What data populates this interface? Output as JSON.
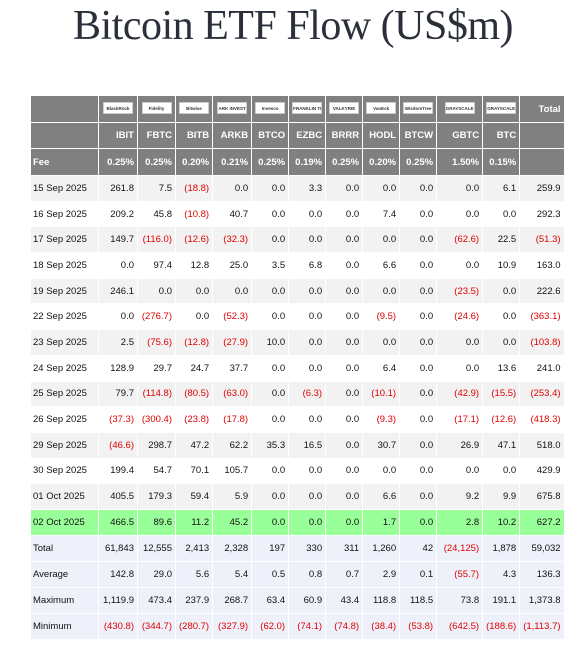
{
  "title": "Bitcoin ETF Flow (US$m)",
  "table": {
    "logos": [
      "BlackRock",
      "Fidelity",
      "Bitwise",
      "ARK INVEST",
      "Invesco",
      "FRANKLIN TEMPLETON",
      "VALKYRIE",
      "VanEck",
      "WisdomTree",
      "GRAYSCALE",
      "GRAYSCALE"
    ],
    "total_header": "Total",
    "tickers": [
      "IBIT",
      "FBTC",
      "BITB",
      "ARKB",
      "BTCO",
      "EZBC",
      "BRRR",
      "HODL",
      "BTCW",
      "GBTC",
      "BTC"
    ],
    "fee": {
      "label": "Fee",
      "values": [
        "0.25%",
        "0.25%",
        "0.20%",
        "0.21%",
        "0.25%",
        "0.19%",
        "0.25%",
        "0.20%",
        "0.25%",
        "1.50%",
        "0.15%"
      ]
    },
    "rows": [
      [
        "15 Sep 2025",
        "261.8",
        "7.5",
        "(18.8)",
        "0.0",
        "0.0",
        "3.3",
        "0.0",
        "0.0",
        "0.0",
        "0.0",
        "6.1",
        "259.9"
      ],
      [
        "16 Sep 2025",
        "209.2",
        "45.8",
        "(10.8)",
        "40.7",
        "0.0",
        "0.0",
        "0.0",
        "7.4",
        "0.0",
        "0.0",
        "0.0",
        "292.3"
      ],
      [
        "17 Sep 2025",
        "149.7",
        "(116.0)",
        "(12.6)",
        "(32.3)",
        "0.0",
        "0.0",
        "0.0",
        "0.0",
        "0.0",
        "(62.6)",
        "22.5",
        "(51.3)"
      ],
      [
        "18 Sep 2025",
        "0.0",
        "97.4",
        "12.8",
        "25.0",
        "3.5",
        "6.8",
        "0.0",
        "6.6",
        "0.0",
        "0.0",
        "10.9",
        "163.0"
      ],
      [
        "19 Sep 2025",
        "246.1",
        "0.0",
        "0.0",
        "0.0",
        "0.0",
        "0.0",
        "0.0",
        "0.0",
        "0.0",
        "(23.5)",
        "0.0",
        "222.6"
      ],
      [
        "22 Sep 2025",
        "0.0",
        "(276.7)",
        "0.0",
        "(52.3)",
        "0.0",
        "0.0",
        "0.0",
        "(9.5)",
        "0.0",
        "(24.6)",
        "0.0",
        "(363.1)"
      ],
      [
        "23 Sep 2025",
        "2.5",
        "(75.6)",
        "(12.8)",
        "(27.9)",
        "10.0",
        "0.0",
        "0.0",
        "0.0",
        "0.0",
        "0.0",
        "0.0",
        "(103.8)"
      ],
      [
        "24 Sep 2025",
        "128.9",
        "29.7",
        "24.7",
        "37.7",
        "0.0",
        "0.0",
        "0.0",
        "6.4",
        "0.0",
        "0.0",
        "13.6",
        "241.0"
      ],
      [
        "25 Sep 2025",
        "79.7",
        "(114.8)",
        "(80.5)",
        "(63.0)",
        "0.0",
        "(6.3)",
        "0.0",
        "(10.1)",
        "0.0",
        "(42.9)",
        "(15.5)",
        "(253.4)"
      ],
      [
        "26 Sep 2025",
        "(37.3)",
        "(300.4)",
        "(23.8)",
        "(17.8)",
        "0.0",
        "0.0",
        "0.0",
        "(9.3)",
        "0.0",
        "(17.1)",
        "(12.6)",
        "(418.3)"
      ],
      [
        "29 Sep 2025",
        "(46.6)",
        "298.7",
        "47.2",
        "62.2",
        "35.3",
        "16.5",
        "0.0",
        "30.7",
        "0.0",
        "26.9",
        "47.1",
        "518.0"
      ],
      [
        "30 Sep 2025",
        "199.4",
        "54.7",
        "70.1",
        "105.7",
        "0.0",
        "0.0",
        "0.0",
        "0.0",
        "0.0",
        "0.0",
        "0.0",
        "429.9"
      ],
      [
        "01 Oct 2025",
        "405.5",
        "179.3",
        "59.4",
        "5.9",
        "0.0",
        "0.0",
        "0.0",
        "6.6",
        "0.0",
        "9.2",
        "9.9",
        "675.8"
      ],
      [
        "02 Oct 2025",
        "466.5",
        "89.6",
        "11.2",
        "45.2",
        "0.0",
        "0.0",
        "0.0",
        "1.7",
        "0.0",
        "2.8",
        "10.2",
        "627.2"
      ]
    ],
    "summary": [
      [
        "Total",
        "61,843",
        "12,555",
        "2,413",
        "2,328",
        "197",
        "330",
        "311",
        "1,260",
        "42",
        "(24,125)",
        "1,878",
        "59,032"
      ],
      [
        "Average",
        "142.8",
        "29.0",
        "5.6",
        "5.4",
        "0.5",
        "0.8",
        "0.7",
        "2.9",
        "0.1",
        "(55.7)",
        "4.3",
        "136.3"
      ],
      [
        "Maximum",
        "1,119.9",
        "473.4",
        "237.9",
        "268.7",
        "63.4",
        "60.9",
        "43.4",
        "118.8",
        "118.5",
        "73.8",
        "191.1",
        "1,373.8"
      ],
      [
        "Minimum",
        "(430.8)",
        "(344.7)",
        "(280.7)",
        "(327.9)",
        "(62.0)",
        "(74.1)",
        "(74.8)",
        "(38.4)",
        "(53.8)",
        "(642.5)",
        "(188.6)",
        "(1,113.7)"
      ]
    ]
  }
}
